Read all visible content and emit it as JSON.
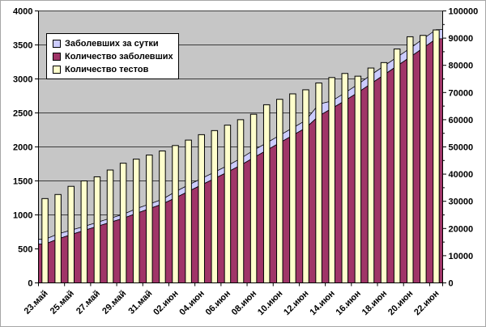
{
  "chart_data": {
    "type": "combo",
    "title": "",
    "categories": [
      "23.май",
      "24.май",
      "25.май",
      "26.май",
      "27.май",
      "28.май",
      "29.май",
      "30.май",
      "31.май",
      "01.июн",
      "02.июн",
      "03.июн",
      "04.июн",
      "05.июн",
      "06.июн",
      "07.июн",
      "08.июн",
      "09.июн",
      "10.июн",
      "11.июн",
      "12.июн",
      "13.июн",
      "14.июн",
      "15.июн",
      "16.июн",
      "17.июн",
      "18.июн",
      "19.июн",
      "20.июн",
      "21.июн",
      "22.июн"
    ],
    "x_axis": {
      "visible_tick_labels": [
        "23.май",
        "25.май",
        "27.май",
        "29.май",
        "31.май",
        "02.июн",
        "04.июн",
        "06.июн",
        "08.июн",
        "10.июн",
        "12.июн",
        "14.июн",
        "16.июн",
        "18.июн",
        "20.июн",
        "22.июн"
      ],
      "label_interval": 2,
      "label_rotation_deg": -45
    },
    "y_left": {
      "min": 0,
      "max": 4000,
      "step": 500
    },
    "y_right": {
      "min": 0,
      "max": 100000,
      "step": 10000,
      "minor_step": 5000
    },
    "series": [
      {
        "name": "Заболевших за сутки",
        "type": "area-stacked",
        "axis": "left",
        "color": "#CCCCFF",
        "values": [
          70,
          75,
          65,
          60,
          60,
          60,
          60,
          70,
          70,
          70,
          90,
          95,
          95,
          95,
          95,
          100,
          110,
          110,
          110,
          110,
          110,
          175,
          110,
          115,
          120,
          130,
          130,
          130,
          130,
          135,
          135
        ]
      },
      {
        "name": "Количество заболевших",
        "type": "area",
        "axis": "left",
        "color": "#A03568",
        "values": [
          570,
          645,
          710,
          770,
          830,
          890,
          950,
          1020,
          1090,
          1160,
          1250,
          1345,
          1440,
          1535,
          1630,
          1730,
          1840,
          1950,
          2060,
          2170,
          2280,
          2455,
          2565,
          2680,
          2800,
          2930,
          3060,
          3190,
          3320,
          3455,
          3590
        ]
      },
      {
        "name": "Количество тестов",
        "type": "column",
        "axis": "right",
        "color": "#FFFFCC",
        "values": [
          31000,
          32500,
          35500,
          37500,
          39000,
          41500,
          44000,
          45500,
          47000,
          48500,
          50500,
          52500,
          54500,
          56000,
          58000,
          60000,
          62000,
          65500,
          67500,
          69500,
          71000,
          73500,
          75500,
          77000,
          76000,
          79000,
          81000,
          86000,
          90500,
          91000,
          93000
        ]
      }
    ],
    "legend_position": "top-left",
    "plot_bg": "#C6C6C6",
    "grid_color": "#3C3C3C",
    "grid": "on"
  }
}
